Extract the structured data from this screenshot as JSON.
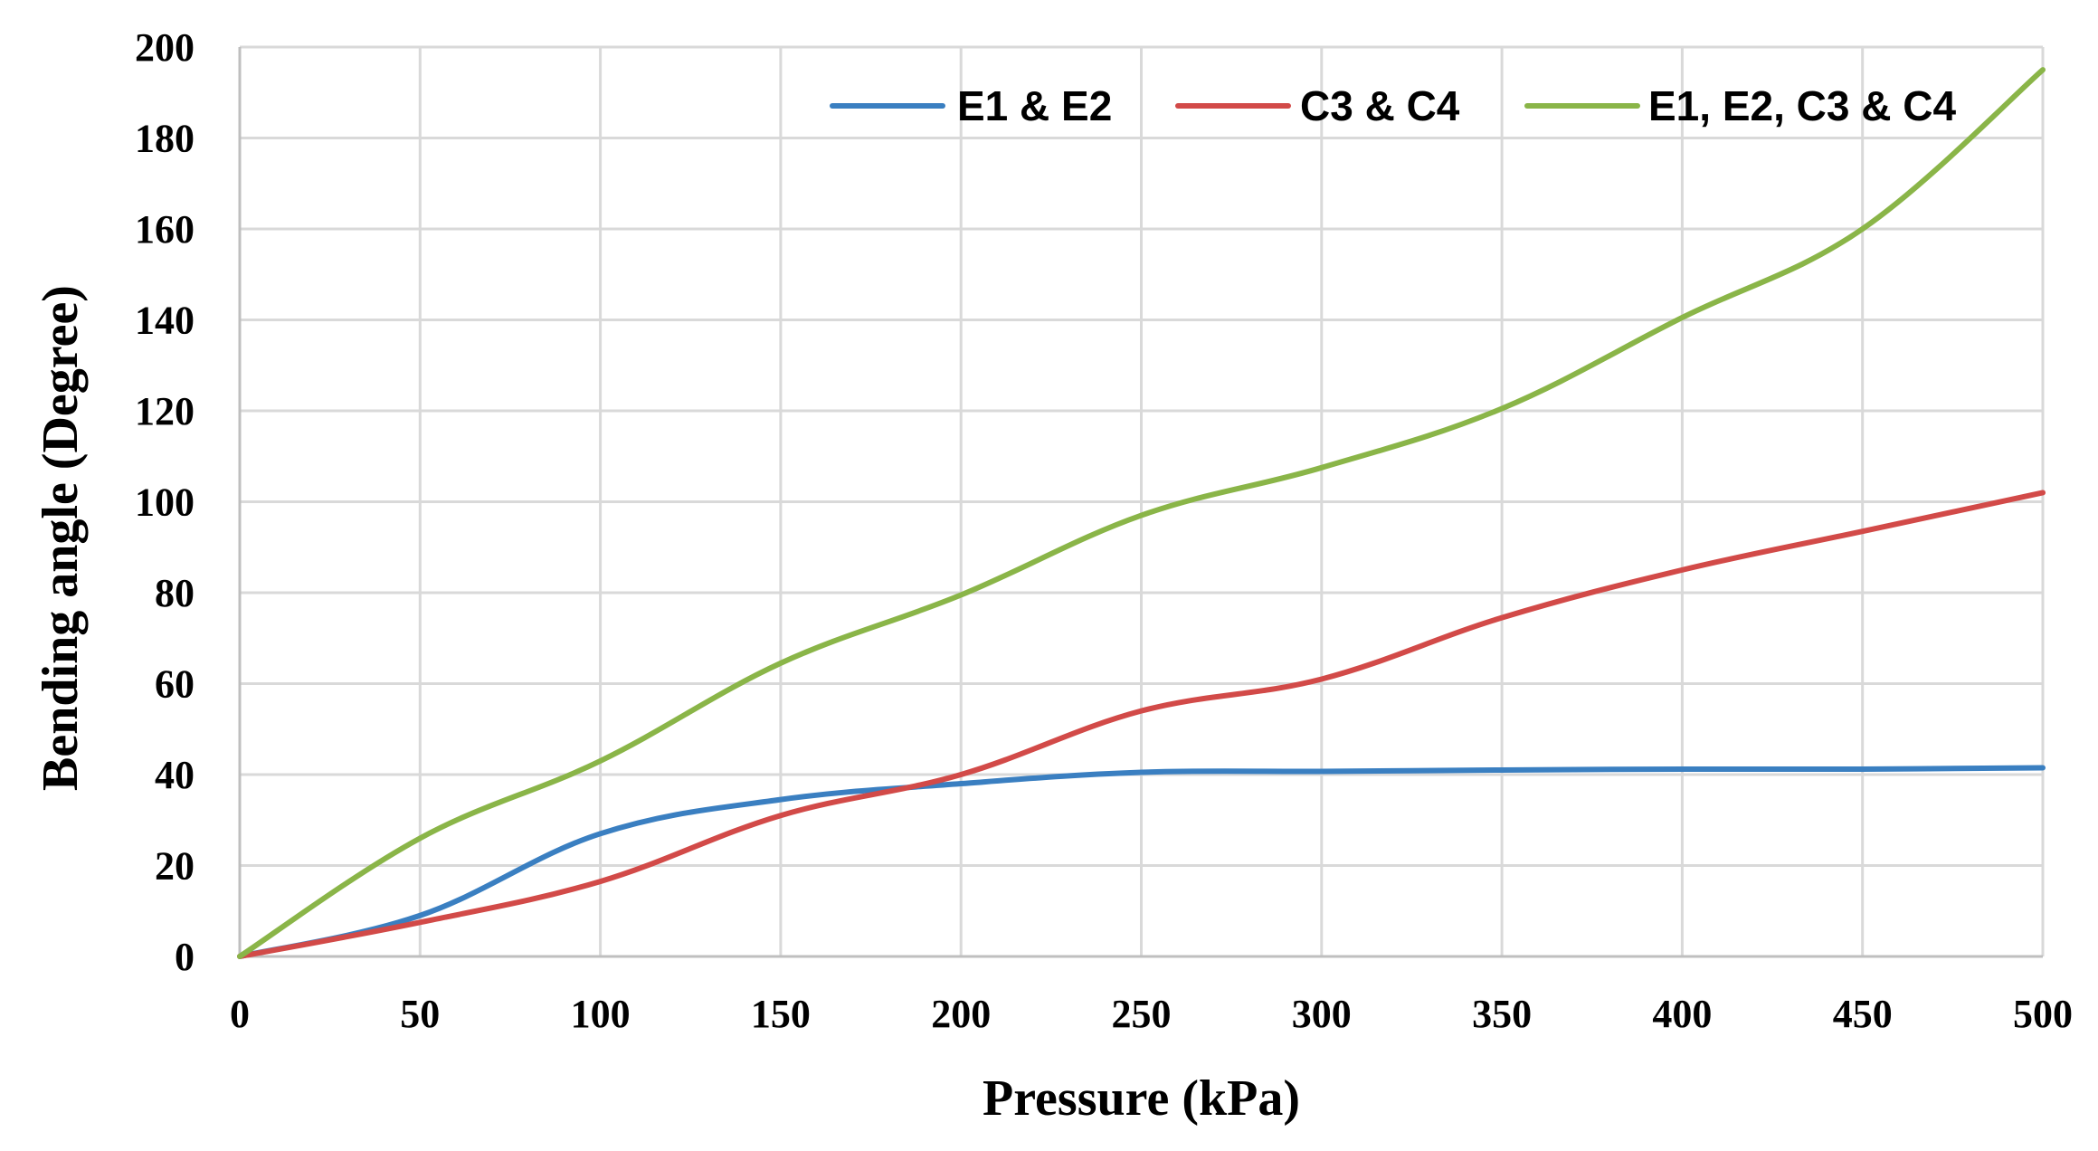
{
  "chart_data": {
    "type": "line",
    "xlabel": "Pressure (kPa)",
    "ylabel": "Bending angle (Degree)",
    "xlim": [
      0,
      500
    ],
    "ylim": [
      0,
      200
    ],
    "xticks": [
      0,
      50,
      100,
      150,
      200,
      250,
      300,
      350,
      400,
      450,
      500
    ],
    "yticks": [
      0,
      20,
      40,
      60,
      80,
      100,
      120,
      140,
      160,
      180,
      200
    ],
    "grid": true,
    "legend_position": "top-right",
    "series": [
      {
        "name": "E1 & E2",
        "color": "#3a7fc1",
        "x": [
          0,
          50,
          100,
          150,
          200,
          250,
          300,
          350,
          400,
          450,
          500
        ],
        "y": [
          0,
          9,
          27,
          34.5,
          38,
          40.5,
          40.7,
          41,
          41.2,
          41.2,
          41.5
        ]
      },
      {
        "name": "C3 & C4",
        "color": "#d24a48",
        "x": [
          0,
          50,
          100,
          150,
          200,
          250,
          300,
          350,
          400,
          450,
          500
        ],
        "y": [
          0,
          7.5,
          16.5,
          31,
          40,
          54,
          61,
          74.5,
          85,
          93.5,
          102
        ]
      },
      {
        "name": "E1, E2, C3 & C4",
        "color": "#8ab548",
        "x": [
          0,
          50,
          100,
          150,
          200,
          250,
          300,
          350,
          400,
          450,
          500
        ],
        "y": [
          0,
          26,
          43,
          64.5,
          79.5,
          97,
          107.5,
          120.5,
          140.5,
          160,
          195
        ]
      }
    ]
  }
}
